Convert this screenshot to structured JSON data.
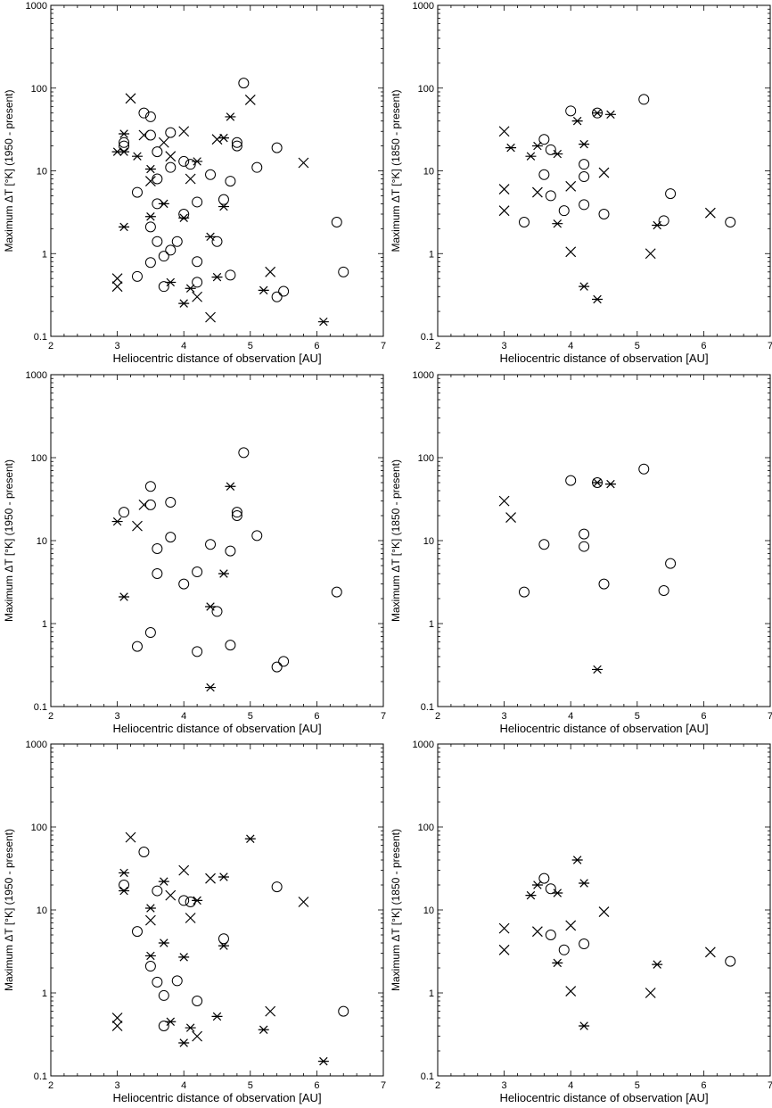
{
  "chart_data": [
    {
      "type": "scatter",
      "xlabel": "Heliocentric distance of observation [AU]",
      "ylabel": "Maximum ΔT [°K] (1950 - present)",
      "xlim": [
        2,
        7
      ],
      "ylim": [
        0.1,
        1000
      ],
      "yscale": "log",
      "x_ticks": [
        "2",
        "3",
        "4",
        "5",
        "6",
        "7"
      ],
      "y_ticks": [
        "0.1",
        "1",
        "10",
        "100",
        "1000"
      ],
      "series": [
        {
          "marker": "circle",
          "points": [
            [
              3.1,
              20
            ],
            [
              3.1,
              22
            ],
            [
              3.4,
              50
            ],
            [
              3.5,
              45
            ],
            [
              3.5,
              27
            ],
            [
              3.6,
              17
            ],
            [
              3.8,
              29
            ],
            [
              3.8,
              11
            ],
            [
              4.0,
              13
            ],
            [
              4.1,
              12
            ],
            [
              4.4,
              9
            ],
            [
              4.6,
              4.5
            ],
            [
              4.7,
              7.5
            ],
            [
              4.8,
              20
            ],
            [
              4.8,
              22
            ],
            [
              4.9,
              115
            ],
            [
              5.1,
              11
            ],
            [
              5.4,
              19
            ],
            [
              3.3,
              5.5
            ],
            [
              3.5,
              2.1
            ],
            [
              3.6,
              8
            ],
            [
              3.6,
              4
            ],
            [
              3.6,
              1.4
            ],
            [
              3.8,
              1.1
            ],
            [
              3.9,
              1.4
            ],
            [
              4.0,
              3.0
            ],
            [
              4.2,
              4.2
            ],
            [
              4.5,
              1.4
            ],
            [
              3.3,
              0.53
            ],
            [
              3.5,
              0.78
            ],
            [
              3.7,
              0.93
            ],
            [
              3.7,
              0.4
            ],
            [
              4.2,
              0.8
            ],
            [
              4.2,
              0.45
            ],
            [
              4.7,
              0.55
            ],
            [
              5.4,
              0.3
            ],
            [
              5.5,
              0.35
            ],
            [
              6.3,
              2.4
            ],
            [
              6.4,
              0.6
            ]
          ]
        },
        {
          "marker": "x",
          "points": [
            [
              3.2,
              75
            ],
            [
              3.4,
              27
            ],
            [
              3.5,
              7.5
            ],
            [
              3.7,
              22
            ],
            [
              3.8,
              15
            ],
            [
              4.0,
              30
            ],
            [
              4.1,
              8
            ],
            [
              4.2,
              0.3
            ],
            [
              4.4,
              0.17
            ],
            [
              4.5,
              24
            ],
            [
              5.0,
              72
            ],
            [
              5.3,
              0.6
            ],
            [
              5.8,
              12.5
            ],
            [
              3.0,
              0.5
            ],
            [
              3.0,
              0.4
            ]
          ]
        },
        {
          "marker": "asterisk",
          "points": [
            [
              3.0,
              17
            ],
            [
              3.1,
              28
            ],
            [
              3.1,
              17
            ],
            [
              3.1,
              2.1
            ],
            [
              3.3,
              15
            ],
            [
              3.5,
              10.5
            ],
            [
              3.5,
              2.8
            ],
            [
              3.7,
              4
            ],
            [
              3.8,
              0.45
            ],
            [
              4.0,
              2.7
            ],
            [
              4.0,
              0.25
            ],
            [
              4.1,
              0.38
            ],
            [
              4.2,
              13
            ],
            [
              4.4,
              1.6
            ],
            [
              4.5,
              0.52
            ],
            [
              4.6,
              25
            ],
            [
              4.6,
              3.7
            ],
            [
              4.7,
              45
            ],
            [
              5.2,
              0.36
            ],
            [
              6.1,
              0.15
            ]
          ]
        }
      ]
    },
    {
      "type": "scatter",
      "xlabel": "Heliocentric distance of observation [AU]",
      "ylabel": "Maximum ΔT [°K] (1850 - present)",
      "xlim": [
        2,
        7
      ],
      "ylim": [
        0.1,
        1000
      ],
      "yscale": "log",
      "x_ticks": [
        "2",
        "3",
        "4",
        "5",
        "6",
        "7"
      ],
      "y_ticks": [
        "0.1",
        "1",
        "10",
        "100",
        "1000"
      ],
      "series": [
        {
          "marker": "circle",
          "points": [
            [
              3.6,
              24
            ],
            [
              3.7,
              18
            ],
            [
              3.6,
              9
            ],
            [
              3.7,
              5
            ],
            [
              3.3,
              2.4
            ],
            [
              3.9,
              3.3
            ],
            [
              4.0,
              53
            ],
            [
              4.2,
              12
            ],
            [
              4.2,
              8.5
            ],
            [
              4.2,
              3.9
            ],
            [
              4.4,
              50
            ],
            [
              4.5,
              3.0
            ],
            [
              5.1,
              73
            ],
            [
              5.4,
              2.5
            ],
            [
              5.5,
              5.3
            ],
            [
              6.4,
              2.4
            ]
          ]
        },
        {
          "marker": "x",
          "points": [
            [
              3.0,
              30
            ],
            [
              3.0,
              6
            ],
            [
              3.0,
              3.3
            ],
            [
              3.5,
              5.5
            ],
            [
              4.0,
              6.5
            ],
            [
              4.0,
              1.05
            ],
            [
              4.5,
              9.5
            ],
            [
              5.2,
              1.0
            ],
            [
              6.1,
              3.1
            ]
          ]
        },
        {
          "marker": "asterisk",
          "points": [
            [
              3.1,
              19
            ],
            [
              3.4,
              15
            ],
            [
              3.5,
              20
            ],
            [
              3.8,
              16
            ],
            [
              3.8,
              2.3
            ],
            [
              4.1,
              40
            ],
            [
              4.2,
              21
            ],
            [
              4.2,
              0.4
            ],
            [
              4.4,
              0.28
            ],
            [
              4.4,
              50
            ],
            [
              4.6,
              48
            ],
            [
              5.3,
              2.2
            ]
          ]
        }
      ]
    },
    {
      "type": "scatter",
      "xlabel": "Heliocentric distance of observation [AU]",
      "ylabel": "Maximum ΔT [°K] (1950 - present)",
      "xlim": [
        2,
        7
      ],
      "ylim": [
        0.1,
        1000
      ],
      "yscale": "log",
      "x_ticks": [
        "2",
        "3",
        "4",
        "5",
        "6",
        "7"
      ],
      "y_ticks": [
        "0.1",
        "1",
        "10",
        "100",
        "1000"
      ],
      "series": [
        {
          "marker": "circle",
          "points": [
            [
              3.1,
              22
            ],
            [
              3.5,
              45
            ],
            [
              3.5,
              27
            ],
            [
              3.6,
              8
            ],
            [
              3.6,
              4
            ],
            [
              3.8,
              29
            ],
            [
              3.8,
              11
            ],
            [
              4.0,
              3.0
            ],
            [
              4.2,
              4.2
            ],
            [
              4.4,
              9
            ],
            [
              4.5,
              1.4
            ],
            [
              4.7,
              7.5
            ],
            [
              4.8,
              20
            ],
            [
              4.8,
              22
            ],
            [
              4.9,
              115
            ],
            [
              5.1,
              11.5
            ],
            [
              3.3,
              0.53
            ],
            [
              3.5,
              0.78
            ],
            [
              4.2,
              0.46
            ],
            [
              4.7,
              0.55
            ],
            [
              5.4,
              0.3
            ],
            [
              5.5,
              0.35
            ],
            [
              6.3,
              2.4
            ]
          ]
        },
        {
          "marker": "x",
          "points": [
            [
              3.4,
              27
            ],
            [
              3.3,
              15
            ]
          ]
        },
        {
          "marker": "asterisk",
          "points": [
            [
              3.0,
              17
            ],
            [
              3.1,
              2.1
            ],
            [
              4.4,
              1.6
            ],
            [
              4.4,
              0.17
            ],
            [
              4.6,
              4.0
            ],
            [
              4.7,
              45
            ]
          ]
        }
      ]
    },
    {
      "type": "scatter",
      "xlabel": "Heliocentric distance of observation [AU]",
      "ylabel": "Maximum ΔT [°K] (1850 - present)",
      "xlim": [
        2,
        7
      ],
      "ylim": [
        0.1,
        1000
      ],
      "yscale": "log",
      "x_ticks": [
        "2",
        "3",
        "4",
        "5",
        "6",
        "7"
      ],
      "y_ticks": [
        "0.1",
        "1",
        "10",
        "100",
        "1000"
      ],
      "series": [
        {
          "marker": "circle",
          "points": [
            [
              3.3,
              2.4
            ],
            [
              3.6,
              9
            ],
            [
              4.0,
              53
            ],
            [
              4.2,
              12
            ],
            [
              4.2,
              8.5
            ],
            [
              4.4,
              50
            ],
            [
              4.5,
              3.0
            ],
            [
              5.1,
              73
            ],
            [
              5.4,
              2.5
            ],
            [
              5.5,
              5.3
            ]
          ]
        },
        {
          "marker": "x",
          "points": [
            [
              3.0,
              30
            ],
            [
              3.1,
              19
            ]
          ]
        },
        {
          "marker": "asterisk",
          "points": [
            [
              4.4,
              50
            ],
            [
              4.6,
              48
            ],
            [
              4.4,
              0.28
            ]
          ]
        }
      ]
    },
    {
      "type": "scatter",
      "xlabel": "Heliocentric distance of observation [AU]",
      "ylabel": "Maximum ΔT [°K] (1950 - present)",
      "xlim": [
        2,
        7
      ],
      "ylim": [
        0.1,
        1000
      ],
      "yscale": "log",
      "x_ticks": [
        "2",
        "3",
        "4",
        "5",
        "6",
        "7"
      ],
      "y_ticks": [
        "0.1",
        "1",
        "10",
        "100",
        "1000"
      ],
      "series": [
        {
          "marker": "circle",
          "points": [
            [
              3.1,
              20
            ],
            [
              3.4,
              50
            ],
            [
              3.3,
              5.5
            ],
            [
              3.5,
              2.1
            ],
            [
              3.6,
              17
            ],
            [
              3.6,
              1.35
            ],
            [
              3.7,
              0.93
            ],
            [
              3.7,
              0.4
            ],
            [
              3.9,
              1.4
            ],
            [
              4.0,
              13
            ],
            [
              4.1,
              12.5
            ],
            [
              4.2,
              0.8
            ],
            [
              4.6,
              4.5
            ],
            [
              5.4,
              19
            ],
            [
              6.4,
              0.6
            ]
          ]
        },
        {
          "marker": "x",
          "points": [
            [
              3.2,
              75
            ],
            [
              3.5,
              7.5
            ],
            [
              3.8,
              15
            ],
            [
              4.0,
              30
            ],
            [
              4.1,
              8
            ],
            [
              4.2,
              0.3
            ],
            [
              4.4,
              24
            ],
            [
              5.3,
              0.6
            ],
            [
              5.8,
              12.5
            ],
            [
              3.0,
              0.5
            ],
            [
              3.0,
              0.4
            ]
          ]
        },
        {
          "marker": "asterisk",
          "points": [
            [
              3.1,
              28
            ],
            [
              3.1,
              17
            ],
            [
              3.5,
              10.5
            ],
            [
              3.5,
              2.8
            ],
            [
              3.7,
              22
            ],
            [
              3.7,
              4
            ],
            [
              3.8,
              0.45
            ],
            [
              4.0,
              2.7
            ],
            [
              4.0,
              0.25
            ],
            [
              4.1,
              0.38
            ],
            [
              4.2,
              13
            ],
            [
              4.5,
              0.52
            ],
            [
              4.6,
              25
            ],
            [
              4.6,
              3.7
            ],
            [
              5.0,
              72
            ],
            [
              5.2,
              0.36
            ],
            [
              6.1,
              0.15
            ]
          ]
        }
      ]
    },
    {
      "type": "scatter",
      "xlabel": "Heliocentric distance of observation [AU]",
      "ylabel": "Maximum ΔT [°K] (1850 - present)",
      "xlim": [
        2,
        7
      ],
      "ylim": [
        0.1,
        1000
      ],
      "yscale": "log",
      "x_ticks": [
        "2",
        "3",
        "4",
        "5",
        "6",
        "7"
      ],
      "y_ticks": [
        "0.1",
        "1",
        "10",
        "100",
        "1000"
      ],
      "series": [
        {
          "marker": "circle",
          "points": [
            [
              3.6,
              24
            ],
            [
              3.7,
              18
            ],
            [
              3.7,
              5
            ],
            [
              3.9,
              3.3
            ],
            [
              4.2,
              3.9
            ],
            [
              6.4,
              2.4
            ]
          ]
        },
        {
          "marker": "x",
          "points": [
            [
              3.0,
              6
            ],
            [
              3.0,
              3.3
            ],
            [
              3.5,
              5.5
            ],
            [
              4.0,
              6.5
            ],
            [
              4.0,
              1.05
            ],
            [
              4.5,
              9.5
            ],
            [
              5.2,
              1.0
            ],
            [
              6.1,
              3.1
            ]
          ]
        },
        {
          "marker": "asterisk",
          "points": [
            [
              3.4,
              15
            ],
            [
              3.5,
              20
            ],
            [
              3.8,
              16
            ],
            [
              3.8,
              2.3
            ],
            [
              4.1,
              40
            ],
            [
              4.2,
              21
            ],
            [
              4.2,
              0.4
            ],
            [
              5.3,
              2.2
            ]
          ]
        }
      ]
    }
  ]
}
